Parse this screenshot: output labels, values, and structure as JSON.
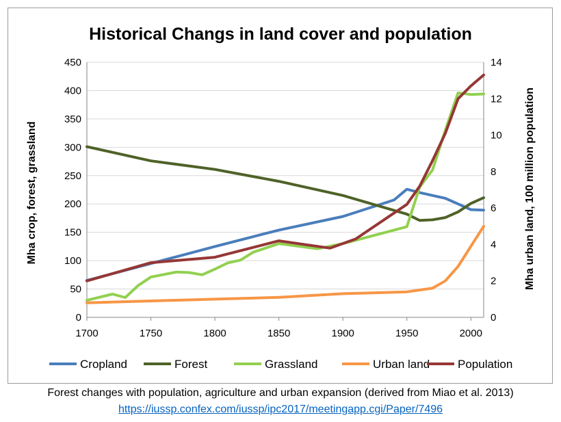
{
  "chart_data": {
    "type": "line",
    "title": "Historical Changs in land cover and population",
    "xlabel": "",
    "ylabel": "Mha crop, forest, grassland",
    "y2label": "Mha urban land, 100 million population",
    "xlim": [
      1700,
      2010
    ],
    "ylim": [
      0,
      450
    ],
    "y2lim": [
      0,
      14
    ],
    "xticks": [
      1700,
      1750,
      1800,
      1850,
      1900,
      1950,
      2000
    ],
    "yticks": [
      0,
      50,
      100,
      150,
      200,
      250,
      300,
      350,
      400,
      450
    ],
    "y2ticks": [
      0,
      2,
      4,
      6,
      8,
      10,
      12,
      14
    ],
    "grid": "horizontal",
    "legend_position": "bottom",
    "series": [
      {
        "name": "Cropland",
        "axis": "left",
        "color": "#4a7ebb",
        "x": [
          1700,
          1750,
          1800,
          1850,
          1900,
          1940,
          1950,
          1960,
          1970,
          1980,
          1990,
          2000,
          2010
        ],
        "y": [
          65,
          95,
          125,
          154,
          178,
          207,
          226,
          220,
          215,
          210,
          200,
          190,
          189
        ]
      },
      {
        "name": "Forest",
        "axis": "left",
        "color": "#4f6228",
        "x": [
          1700,
          1750,
          1800,
          1850,
          1900,
          1950,
          1960,
          1970,
          1980,
          1990,
          2000,
          2010
        ],
        "y": [
          301,
          276,
          261,
          240,
          215,
          182,
          171,
          172,
          176,
          186,
          201,
          211
        ]
      },
      {
        "name": "Grassland",
        "axis": "left",
        "color": "#92d050",
        "x": [
          1700,
          1720,
          1730,
          1740,
          1750,
          1770,
          1780,
          1790,
          1800,
          1810,
          1820,
          1830,
          1850,
          1880,
          1900,
          1950,
          1960,
          1970,
          1980,
          1990,
          2000,
          2010
        ],
        "y": [
          30,
          41,
          35,
          56,
          71,
          80,
          79,
          75,
          85,
          96,
          101,
          115,
          130,
          121,
          130,
          160,
          230,
          260,
          330,
          396,
          393,
          394
        ]
      },
      {
        "name": "Urban land",
        "axis": "right",
        "color": "#f79646",
        "x": [
          1700,
          1750,
          1800,
          1850,
          1900,
          1950,
          1960,
          1970,
          1980,
          1990,
          2000,
          2010
        ],
        "y": [
          0.8,
          0.9,
          1.0,
          1.1,
          1.3,
          1.4,
          1.5,
          1.6,
          2.0,
          2.8,
          3.9,
          5.0
        ]
      },
      {
        "name": "Population",
        "axis": "right",
        "color": "#953735",
        "x": [
          1700,
          1750,
          1800,
          1850,
          1890,
          1910,
          1950,
          1960,
          1970,
          1980,
          1990,
          2000,
          2010
        ],
        "y": [
          2.0,
          3.0,
          3.3,
          4.2,
          3.8,
          4.3,
          6.2,
          7.2,
          8.6,
          10.1,
          12.0,
          12.7,
          13.3
        ]
      }
    ]
  },
  "caption": {
    "text": "Forest changes with population, agriculture and urban expansion (derived from Miao et al. 2013)",
    "link": "https://iussp.confex.com/iussp/ipc2017/meetingapp.cgi/Paper/7496"
  }
}
